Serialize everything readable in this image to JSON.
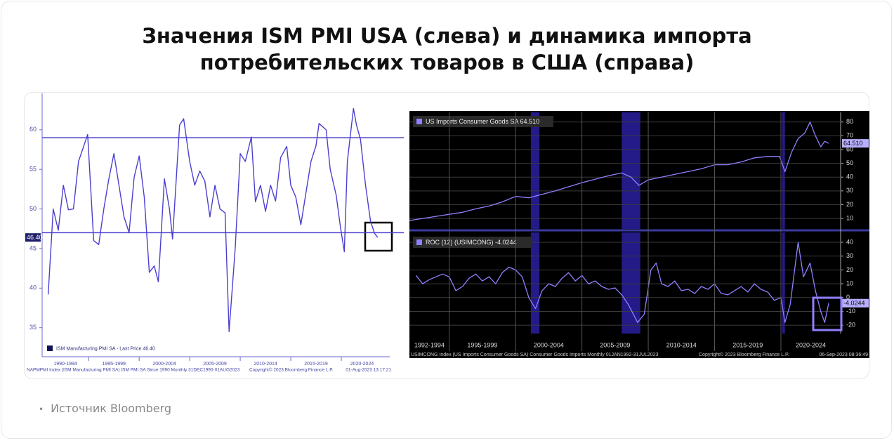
{
  "header": {
    "title": "Значения ISM PMI USA (слева) и динамика импорта потребительских товаров в США (справа)"
  },
  "footer": {
    "source": "Источник Bloomberg"
  },
  "chart_data": [
    {
      "type": "line",
      "x": [
        1991.0,
        1991.5,
        1992.0,
        1992.5,
        1993.0,
        1993.5,
        1994.0,
        1994.9,
        1995.5,
        1996.0,
        1996.5,
        1997.0,
        1997.5,
        1998.0,
        1998.5,
        1999.0,
        1999.5,
        2000.0,
        2000.5,
        2001.0,
        2001.5,
        2001.9,
        2002.5,
        2003.0,
        2003.3,
        2004.0,
        2004.4,
        2005.0,
        2005.5,
        2006.0,
        2006.5,
        2007.0,
        2007.5,
        2008.0,
        2008.5,
        2008.9,
        2009.5,
        2010.0,
        2010.5,
        2011.1,
        2011.5,
        2012.0,
        2012.5,
        2013.0,
        2013.5,
        2014.0,
        2014.6,
        2015.0,
        2015.5,
        2016.0,
        2016.5,
        2017.0,
        2017.5,
        2017.8,
        2018.5,
        2018.9,
        2019.5,
        2019.9,
        2020.3,
        2020.6,
        2021.2,
        2021.5,
        2021.9,
        2022.4,
        2022.9,
        2023.3,
        2023.6
      ],
      "series": [
        {
          "name": "ISM Manufacturing PMI SA - Last Price 46.40",
          "color": "#4b3fd0",
          "values": [
            39.2,
            50,
            47.3,
            53,
            49.9,
            50,
            56,
            59.4,
            46,
            45.5,
            50,
            53.8,
            57,
            53,
            49,
            47,
            54,
            56.7,
            51.5,
            42,
            42.8,
            40.8,
            53.8,
            50,
            46.2,
            60.6,
            61.4,
            56,
            53,
            54.8,
            53.5,
            49,
            53,
            50,
            49.5,
            34.5,
            45,
            57,
            56,
            59.1,
            50.9,
            53,
            49.7,
            53,
            51,
            56.5,
            57.9,
            53,
            51.5,
            48,
            52,
            56,
            58,
            60.8,
            60,
            55,
            51.7,
            47.8,
            44.6,
            56,
            62.7,
            60.6,
            58.8,
            53,
            48.4,
            46.9,
            46.4
          ]
        }
      ],
      "last_label": "46.40",
      "reference_lines": [
        59,
        47
      ],
      "xlim": [
        1990.4,
        2024.1
      ],
      "ylim": [
        31.6,
        64.6
      ],
      "yticks": [
        35,
        40,
        45,
        50,
        55,
        60
      ],
      "xticks": [
        {
          "value": 1990,
          "label": "1990-1994"
        },
        {
          "value": 1995,
          "label": "1995-1999"
        },
        {
          "value": 2000,
          "label": "2000-2004"
        },
        {
          "value": 2005,
          "label": "2005-2009"
        },
        {
          "value": 2010,
          "label": "2010-2014"
        },
        {
          "value": 2015,
          "label": "2015-2019"
        },
        {
          "value": 2020,
          "label": "2020-2024"
        }
      ],
      "grid": false,
      "footer": {
        "description": "NAPMPMI Index (ISM Manufacturing PMI SA) ISM PMI SA Since 1990  Monthly 31DEC1990-01AUG2023",
        "copyright": "Copyright© 2023 Bloomberg Finance L.P.",
        "timestamp": "01-Aug-2023 13:17:21"
      }
    },
    {
      "type": "line",
      "x": [
        1992,
        1993,
        1994,
        1995,
        1996,
        1997,
        1998,
        1999,
        2000,
        2001,
        2002,
        2003,
        2004,
        2005,
        2006,
        2007,
        2008,
        2008.7,
        2009.3,
        2010,
        2011,
        2012,
        2013,
        2014,
        2015,
        2016,
        2017,
        2018,
        2019,
        2019.9,
        2020.3,
        2020.8,
        2021.3,
        2021.8,
        2022.2,
        2022.6,
        2023,
        2023.3,
        2023.6
      ],
      "series": [
        {
          "name": "US Imports Consumer Goods SA 64.510",
          "color": "#8f80ff",
          "values": [
            8.5,
            10,
            11.5,
            13,
            14.5,
            17,
            19,
            22,
            26,
            25,
            27.5,
            30,
            33,
            36,
            38.5,
            41,
            43,
            40,
            34,
            38,
            40,
            42,
            44,
            46,
            49,
            49,
            51,
            54,
            55,
            55,
            44,
            58,
            68,
            72,
            80,
            70,
            62,
            66,
            64.51
          ]
        }
      ],
      "last_label": "64.510",
      "shaded": [
        [
          2001.15,
          2001.8
        ],
        [
          2008.0,
          2009.4
        ],
        [
          2020.1,
          2020.3
        ]
      ],
      "xlim": [
        1992,
        2024.5
      ],
      "ylim": [
        2.4,
        87
      ],
      "yticks": [
        10,
        20,
        30,
        40,
        50,
        60,
        70,
        80
      ],
      "grid": true
    },
    {
      "type": "line",
      "x": [
        1992.5,
        1993,
        1993.5,
        1994,
        1994.5,
        1995,
        1995.5,
        1996,
        1996.5,
        1997,
        1997.5,
        1998,
        1998.5,
        1999,
        1999.5,
        2000,
        2000.5,
        2001,
        2001.5,
        2002,
        2002.5,
        2003,
        2003.5,
        2004,
        2004.5,
        2005,
        2005.5,
        2006,
        2006.5,
        2007,
        2007.5,
        2008,
        2008.5,
        2009.2,
        2009.7,
        2010.2,
        2010.6,
        2011,
        2011.5,
        2012,
        2012.5,
        2013,
        2013.5,
        2014,
        2014.5,
        2015,
        2015.5,
        2016,
        2016.5,
        2017,
        2017.5,
        2018,
        2018.5,
        2019,
        2019.5,
        2020,
        2020.3,
        2020.7,
        2021.3,
        2021.7,
        2022.2,
        2022.6,
        2023,
        2023.3,
        2023.6
      ],
      "series": [
        {
          "name": "ROC (12) (USIMCONG) -4.0244",
          "color": "#8f80ff",
          "values": [
            16,
            10,
            13,
            15,
            17,
            15,
            5,
            8,
            14,
            17,
            12,
            15,
            10,
            18,
            22,
            20,
            15,
            0,
            -8,
            5,
            10,
            8,
            14,
            18,
            12,
            16,
            10,
            12,
            8,
            6,
            7,
            2,
            -5,
            -18,
            -12,
            20,
            25,
            10,
            8,
            12,
            5,
            6,
            3,
            8,
            6,
            10,
            3,
            2,
            5,
            8,
            4,
            10,
            6,
            4,
            -2,
            0,
            -18,
            -5,
            40,
            15,
            25,
            5,
            -10,
            -18,
            -4.0244
          ]
        }
      ],
      "last_label": "-4.0244",
      "shaded": [
        [
          2001.15,
          2001.8
        ],
        [
          2008.0,
          2009.4
        ],
        [
          2020.1,
          2020.3
        ]
      ],
      "xlim": [
        1992,
        2024.5
      ],
      "ylim": [
        -26,
        47.1
      ],
      "yticks": [
        -20,
        -10,
        0,
        10,
        20,
        30,
        40
      ],
      "xticks": [
        {
          "value": 1992,
          "label": "1992-1994"
        },
        {
          "value": 1995,
          "label": "1995-1999"
        },
        {
          "value": 2000,
          "label": "2000-2004"
        },
        {
          "value": 2005,
          "label": "2005-2009"
        },
        {
          "value": 2010,
          "label": "2010-2014"
        },
        {
          "value": 2015,
          "label": "2015-2019"
        },
        {
          "value": 2020,
          "label": "2020-2024"
        }
      ],
      "grid": true,
      "footer": {
        "description": "USIMCONG Index (US Imports Consumer Goods SA) Consumer Goods Imports  Monthly 01JAN1992-31JUL2023",
        "copyright": "Copyright© 2023 Bloomberg Finance L.P.",
        "timestamp": "06-Sep-2023 08:36:49"
      }
    }
  ]
}
